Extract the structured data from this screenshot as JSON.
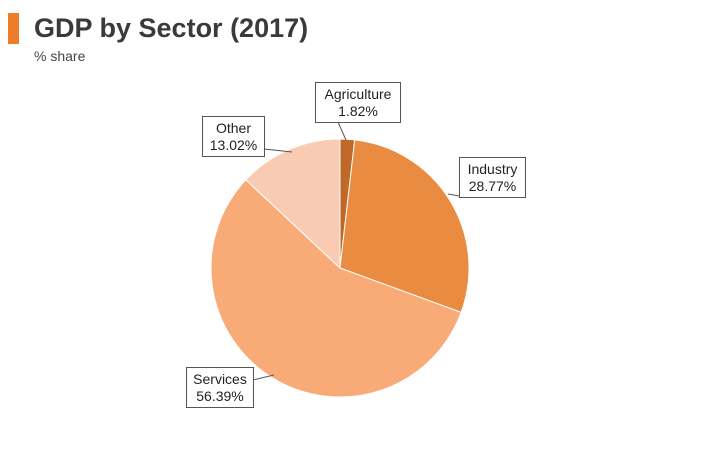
{
  "header": {
    "title": "GDP by Sector (2017)",
    "subtitle": "% share"
  },
  "chart_data": {
    "type": "pie",
    "title": "GDP by Sector (2017)",
    "subtitle": "% share",
    "slices": [
      {
        "name": "Agriculture",
        "value": 1.82,
        "label": "1.82%",
        "color": "#c0672a"
      },
      {
        "name": "Industry",
        "value": 28.77,
        "label": "28.77%",
        "color": "#e98b40"
      },
      {
        "name": "Services",
        "value": 56.39,
        "label": "56.39%",
        "color": "#f8ab77"
      },
      {
        "name": "Other",
        "value": 13.02,
        "label": "13.02%",
        "color": "#f9cbb2"
      }
    ]
  },
  "colors": {
    "accent": "#ee7d2a"
  }
}
